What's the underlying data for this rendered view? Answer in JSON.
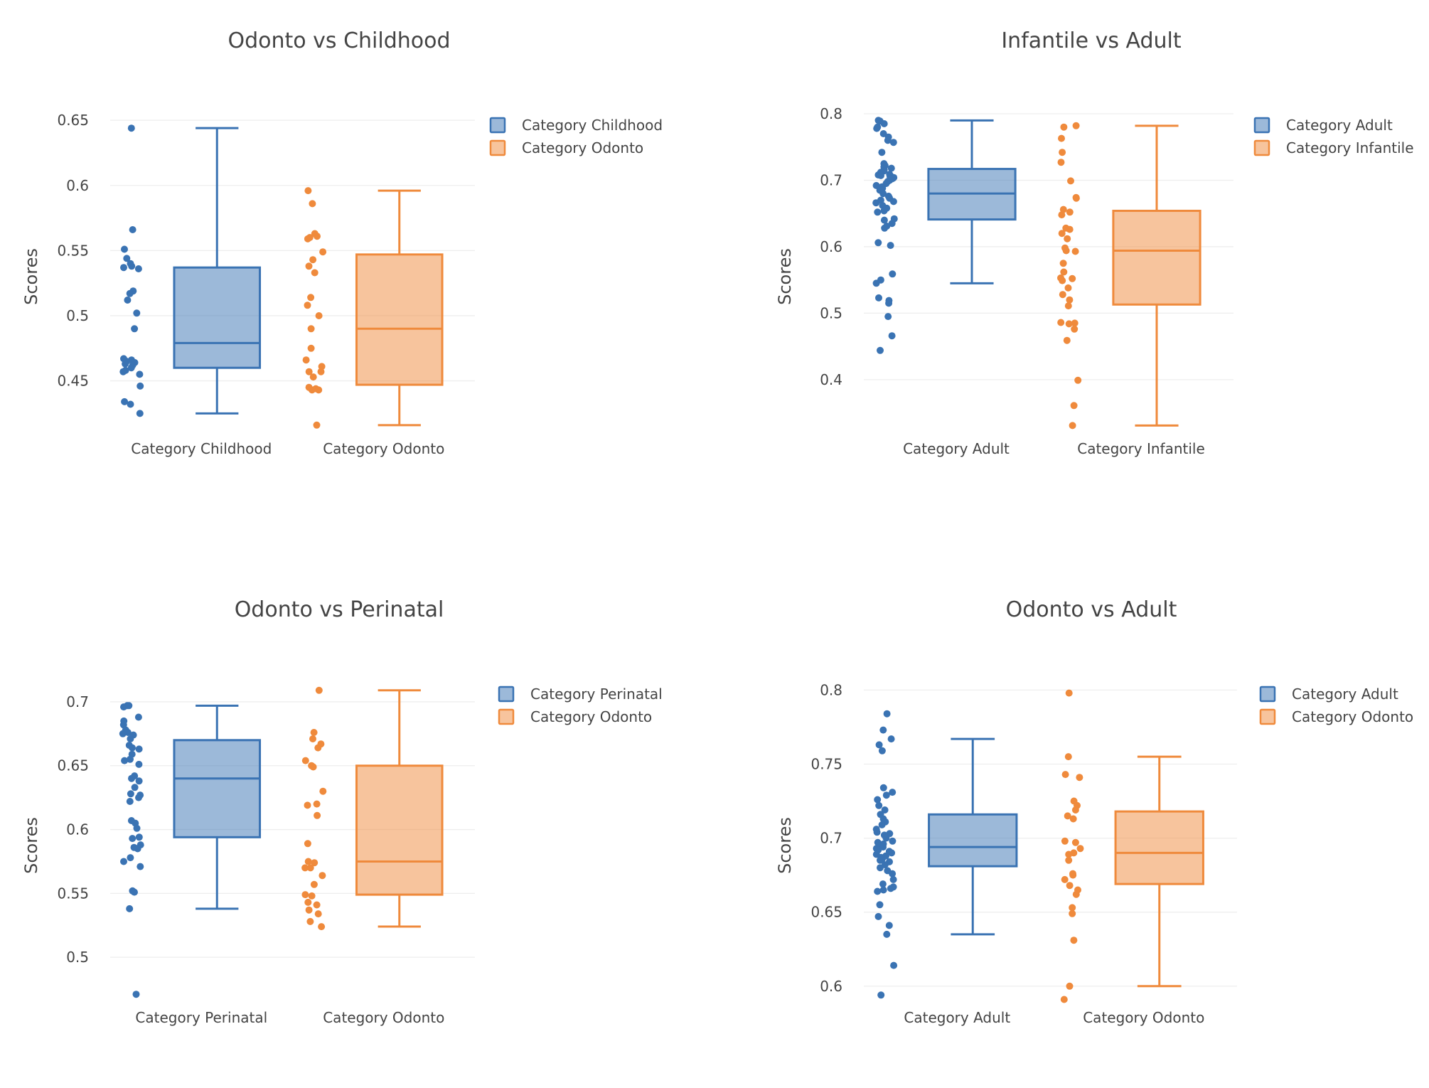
{
  "colors": {
    "blue": "#3a73b3",
    "orange": "#ef8a3c"
  },
  "chart_data": [
    {
      "type": "box",
      "title": "Odonto vs Childhood",
      "ylabel": "Scores",
      "ylim": [
        0.405,
        0.655
      ],
      "yticks": [
        0.45,
        0.5,
        0.55,
        0.6,
        0.65
      ],
      "ytick_labels": [
        "0.45",
        "0.5",
        "0.55",
        "0.6",
        "0.65"
      ],
      "categories": [
        "Category Childhood",
        "Category Odonto"
      ],
      "series": [
        {
          "name": "Category Childhood",
          "color": "blue",
          "box": {
            "min": 0.425,
            "q1": 0.46,
            "median": 0.479,
            "q3": 0.537,
            "max": 0.644
          },
          "points": [
            0.644,
            0.566,
            0.551,
            0.544,
            0.54,
            0.538,
            0.537,
            0.536,
            0.519,
            0.517,
            0.512,
            0.502,
            0.49,
            0.467,
            0.466,
            0.465,
            0.464,
            0.463,
            0.462,
            0.46,
            0.458,
            0.457,
            0.455,
            0.446,
            0.434,
            0.432,
            0.425
          ]
        },
        {
          "name": "Category Odonto",
          "color": "orange",
          "box": {
            "min": 0.416,
            "q1": 0.447,
            "median": 0.49,
            "q3": 0.547,
            "max": 0.596
          },
          "points": [
            0.596,
            0.586,
            0.563,
            0.561,
            0.56,
            0.559,
            0.549,
            0.543,
            0.538,
            0.533,
            0.514,
            0.508,
            0.5,
            0.49,
            0.475,
            0.466,
            0.461,
            0.457,
            0.457,
            0.453,
            0.445,
            0.444,
            0.443,
            0.443,
            0.416
          ]
        }
      ]
    },
    {
      "type": "box",
      "title": "Infantile vs Adult",
      "ylabel": "Scores",
      "ylim": [
        0.31,
        0.8
      ],
      "yticks": [
        0.4,
        0.5,
        0.6,
        0.7,
        0.8
      ],
      "ytick_labels": [
        "0.4",
        "0.5",
        "0.6",
        "0.7",
        "0.8"
      ],
      "categories": [
        "Category Adult",
        "Category Infantile"
      ],
      "series": [
        {
          "name": "Category Adult",
          "color": "blue",
          "box": {
            "min": 0.545,
            "q1": 0.641,
            "median": 0.68,
            "q3": 0.717,
            "max": 0.79
          },
          "points": [
            0.79,
            0.789,
            0.785,
            0.78,
            0.778,
            0.77,
            0.765,
            0.76,
            0.757,
            0.742,
            0.725,
            0.722,
            0.72,
            0.718,
            0.716,
            0.714,
            0.712,
            0.71,
            0.709,
            0.708,
            0.707,
            0.706,
            0.705,
            0.704,
            0.703,
            0.702,
            0.7,
            0.698,
            0.695,
            0.692,
            0.69,
            0.688,
            0.685,
            0.68,
            0.676,
            0.673,
            0.67,
            0.668,
            0.666,
            0.662,
            0.658,
            0.654,
            0.652,
            0.642,
            0.64,
            0.635,
            0.631,
            0.628,
            0.606,
            0.602,
            0.559,
            0.55,
            0.545,
            0.523,
            0.519,
            0.515,
            0.495,
            0.466,
            0.444
          ]
        },
        {
          "name": "Category Infantile",
          "color": "orange",
          "box": {
            "min": 0.331,
            "q1": 0.513,
            "median": 0.594,
            "q3": 0.654,
            "max": 0.782
          },
          "points": [
            0.782,
            0.78,
            0.763,
            0.742,
            0.727,
            0.699,
            0.674,
            0.673,
            0.656,
            0.652,
            0.648,
            0.628,
            0.626,
            0.62,
            0.612,
            0.598,
            0.594,
            0.593,
            0.575,
            0.562,
            0.553,
            0.552,
            0.549,
            0.538,
            0.528,
            0.52,
            0.511,
            0.486,
            0.485,
            0.484,
            0.476,
            0.459,
            0.399,
            0.361,
            0.331
          ]
        }
      ]
    },
    {
      "type": "box",
      "title": "Odonto vs Perinatal",
      "ylabel": "Scores",
      "ylim": [
        0.46,
        0.715
      ],
      "yticks": [
        0.5,
        0.55,
        0.6,
        0.65,
        0.7
      ],
      "ytick_labels": [
        "0.5",
        "0.55",
        "0.6",
        "0.65",
        "0.7"
      ],
      "categories": [
        "Category Perinatal",
        "Category Odonto"
      ],
      "series": [
        {
          "name": "Category Perinatal",
          "color": "blue",
          "box": {
            "min": 0.538,
            "q1": 0.594,
            "median": 0.64,
            "q3": 0.67,
            "max": 0.697
          },
          "points": [
            0.697,
            0.697,
            0.696,
            0.688,
            0.685,
            0.682,
            0.678,
            0.676,
            0.675,
            0.674,
            0.671,
            0.666,
            0.664,
            0.663,
            0.659,
            0.655,
            0.654,
            0.651,
            0.642,
            0.64,
            0.638,
            0.633,
            0.628,
            0.627,
            0.625,
            0.622,
            0.607,
            0.605,
            0.601,
            0.594,
            0.593,
            0.588,
            0.586,
            0.585,
            0.578,
            0.575,
            0.571,
            0.552,
            0.551,
            0.538,
            0.471
          ]
        },
        {
          "name": "Category Odonto",
          "color": "orange",
          "box": {
            "min": 0.524,
            "q1": 0.549,
            "median": 0.575,
            "q3": 0.65,
            "max": 0.709
          },
          "points": [
            0.709,
            0.676,
            0.671,
            0.667,
            0.664,
            0.654,
            0.65,
            0.649,
            0.63,
            0.62,
            0.619,
            0.611,
            0.589,
            0.575,
            0.574,
            0.57,
            0.57,
            0.564,
            0.557,
            0.549,
            0.548,
            0.543,
            0.541,
            0.537,
            0.534,
            0.528,
            0.524
          ]
        }
      ]
    },
    {
      "type": "box",
      "title": "Odonto vs Adult",
      "ylabel": "Scores",
      "ylim": [
        0.585,
        0.805
      ],
      "yticks": [
        0.6,
        0.65,
        0.7,
        0.75,
        0.8
      ],
      "ytick_labels": [
        "0.6",
        "0.65",
        "0.7",
        "0.75",
        "0.8"
      ],
      "categories": [
        "Category Adult",
        "Category Odonto"
      ],
      "series": [
        {
          "name": "Category Adult",
          "color": "blue",
          "box": {
            "min": 0.635,
            "q1": 0.681,
            "median": 0.694,
            "q3": 0.716,
            "max": 0.767
          },
          "points": [
            0.784,
            0.773,
            0.767,
            0.763,
            0.759,
            0.734,
            0.731,
            0.729,
            0.726,
            0.722,
            0.719,
            0.716,
            0.713,
            0.711,
            0.709,
            0.706,
            0.704,
            0.703,
            0.702,
            0.7,
            0.698,
            0.697,
            0.696,
            0.695,
            0.694,
            0.693,
            0.692,
            0.691,
            0.69,
            0.689,
            0.688,
            0.687,
            0.686,
            0.685,
            0.684,
            0.682,
            0.68,
            0.678,
            0.676,
            0.672,
            0.669,
            0.667,
            0.666,
            0.665,
            0.664,
            0.655,
            0.647,
            0.641,
            0.635,
            0.614,
            0.594
          ]
        },
        {
          "name": "Category Odonto",
          "color": "orange",
          "box": {
            "min": 0.6,
            "q1": 0.669,
            "median": 0.69,
            "q3": 0.718,
            "max": 0.755
          },
          "points": [
            0.798,
            0.755,
            0.743,
            0.741,
            0.725,
            0.722,
            0.719,
            0.715,
            0.713,
            0.698,
            0.697,
            0.693,
            0.69,
            0.689,
            0.685,
            0.676,
            0.675,
            0.672,
            0.668,
            0.665,
            0.662,
            0.653,
            0.649,
            0.631,
            0.6,
            0.591
          ]
        }
      ]
    }
  ]
}
